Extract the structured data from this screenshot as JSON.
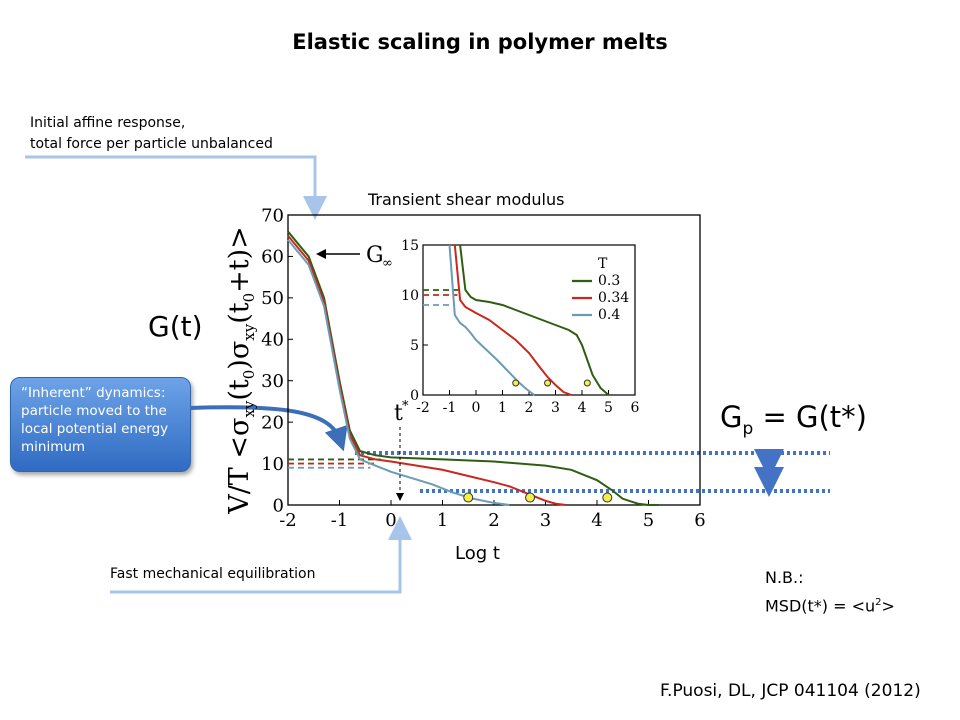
{
  "title": "Elastic scaling in polymer melts",
  "note_affine": [
    "Initial affine response,",
    "total force per particle unbalanced"
  ],
  "caption_transient": "Transient shear modulus",
  "label_gt": "G(t)",
  "label_gp": {
    "g": "G",
    "sub": "p",
    "rest": " = G(t*)"
  },
  "label_logt": "Log t",
  "note_fast": "Fast mechanical equilibration",
  "callout": "“Inherent” dynamics: particle moved to the local potential energy minimum",
  "note_nb": {
    "line1": "N.B.:",
    "line2_prefix": "MSD(t*) = <u",
    "sup": "2",
    "line2_suffix": ">"
  },
  "citation": "F.Puosi, DL, JCP 041104 (2012)",
  "colors": {
    "green": "#2f5d12",
    "red": "#c8281e",
    "blue": "#6a9cb8",
    "arrow": "#a9c4ea",
    "dotted": "#4472c4",
    "marker": "#f3f04a"
  },
  "chart_data": [
    {
      "type": "line",
      "ylabel": "V/T <σ_xy(t_0)σ_xy(t_0+t)>",
      "xlim": [
        -2,
        6
      ],
      "ylim": [
        0,
        70
      ],
      "xticks": [
        -2,
        -1,
        0,
        1,
        2,
        3,
        4,
        5,
        6
      ],
      "yticks": [
        0,
        10,
        20,
        30,
        40,
        50,
        60,
        70
      ],
      "annotations": [
        "G∞",
        "t*"
      ],
      "series": [
        {
          "color": "#2f5d12",
          "x": [
            -2,
            -1.6,
            -1.3,
            -1.0,
            -0.8,
            -0.6,
            -0.3,
            0,
            1,
            2,
            3,
            3.5,
            4,
            4.3,
            4.5,
            4.8,
            5,
            5.2
          ],
          "y": [
            66,
            60,
            50,
            30,
            18,
            13,
            12,
            11.5,
            11,
            10.5,
            9.5,
            8.5,
            6,
            3.5,
            1.5,
            0.3,
            0,
            0
          ],
          "dashed_x": [
            -2,
            -0.2
          ],
          "dashed_y": [
            11,
            11
          ],
          "marker": [
            4.2,
            1.8
          ]
        },
        {
          "color": "#c8281e",
          "x": [
            -2,
            -1.6,
            -1.3,
            -1.0,
            -0.8,
            -0.6,
            -0.3,
            0,
            0.5,
            1,
            1.5,
            2,
            2.3,
            2.6,
            2.8,
            3,
            3.2,
            3.4
          ],
          "y": [
            65,
            59,
            49,
            29,
            17,
            12,
            11,
            10.5,
            9.5,
            8.5,
            7,
            5.5,
            4.5,
            3,
            2,
            1,
            0.3,
            0
          ],
          "dashed_x": [
            -2,
            -0.3
          ],
          "dashed_y": [
            10,
            10
          ],
          "marker": [
            2.7,
            1.8
          ]
        },
        {
          "color": "#6a9cb8",
          "x": [
            -2,
            -1.6,
            -1.3,
            -1.0,
            -0.8,
            -0.6,
            -0.3,
            0,
            0.4,
            0.8,
            1.2,
            1.6,
            2.0,
            2.3
          ],
          "y": [
            64,
            58,
            48,
            28,
            16,
            11,
            9.5,
            8,
            6.5,
            5,
            3,
            1.5,
            0.5,
            0
          ],
          "dashed_x": [
            -2,
            -0.4
          ],
          "dashed_y": [
            9,
            9
          ],
          "marker": [
            1.5,
            1.8
          ]
        }
      ]
    },
    {
      "type": "line",
      "legend_title": "T",
      "legend_position": "top-right",
      "xlim": [
        -2,
        6
      ],
      "ylim": [
        0,
        15
      ],
      "xticks": [
        -2,
        -1,
        0,
        1,
        2,
        3,
        4,
        5,
        6
      ],
      "yticks": [
        0,
        5,
        10,
        15
      ],
      "series": [
        {
          "name": "0.3",
          "color": "#2f5d12",
          "x": [
            -0.6,
            -0.4,
            -0.2,
            0,
            0.5,
            1,
            1.5,
            2,
            2.5,
            3,
            3.5,
            3.8,
            4.0,
            4.2,
            4.4,
            4.7,
            5.0
          ],
          "y": [
            15,
            10.5,
            9.8,
            9.5,
            9.3,
            9.0,
            8.5,
            8.0,
            7.5,
            7.0,
            6.5,
            6.0,
            5.0,
            3.5,
            2.0,
            0.7,
            0
          ],
          "dashed_x": [
            -2,
            -0.5
          ],
          "dashed_y": [
            10.5,
            10.5
          ],
          "marker": [
            4.2,
            1.2
          ]
        },
        {
          "name": "0.34",
          "color": "#c8281e",
          "x": [
            -0.8,
            -0.6,
            -0.4,
            -0.2,
            0,
            0.5,
            1,
            1.5,
            2,
            2.4,
            2.7,
            3.0,
            3.3,
            3.6
          ],
          "y": [
            15,
            9.5,
            8.8,
            8.5,
            8.2,
            7.5,
            6.5,
            5.5,
            4.2,
            2.8,
            1.8,
            1.0,
            0.3,
            0
          ],
          "dashed_x": [
            -2,
            -0.7
          ],
          "dashed_y": [
            10,
            10
          ],
          "marker": [
            2.7,
            1.2
          ]
        },
        {
          "name": "0.4",
          "color": "#6a9cb8",
          "x": [
            -1.0,
            -0.8,
            -0.6,
            -0.4,
            -0.2,
            0,
            0.4,
            0.8,
            1.2,
            1.6,
            1.9,
            2.2
          ],
          "y": [
            15,
            8.0,
            7.2,
            6.8,
            6.2,
            5.5,
            4.5,
            3.5,
            2.4,
            1.3,
            0.6,
            0
          ],
          "dashed_x": [
            -2,
            -0.9
          ],
          "dashed_y": [
            9,
            9
          ],
          "marker": [
            1.5,
            1.2
          ]
        }
      ]
    }
  ]
}
